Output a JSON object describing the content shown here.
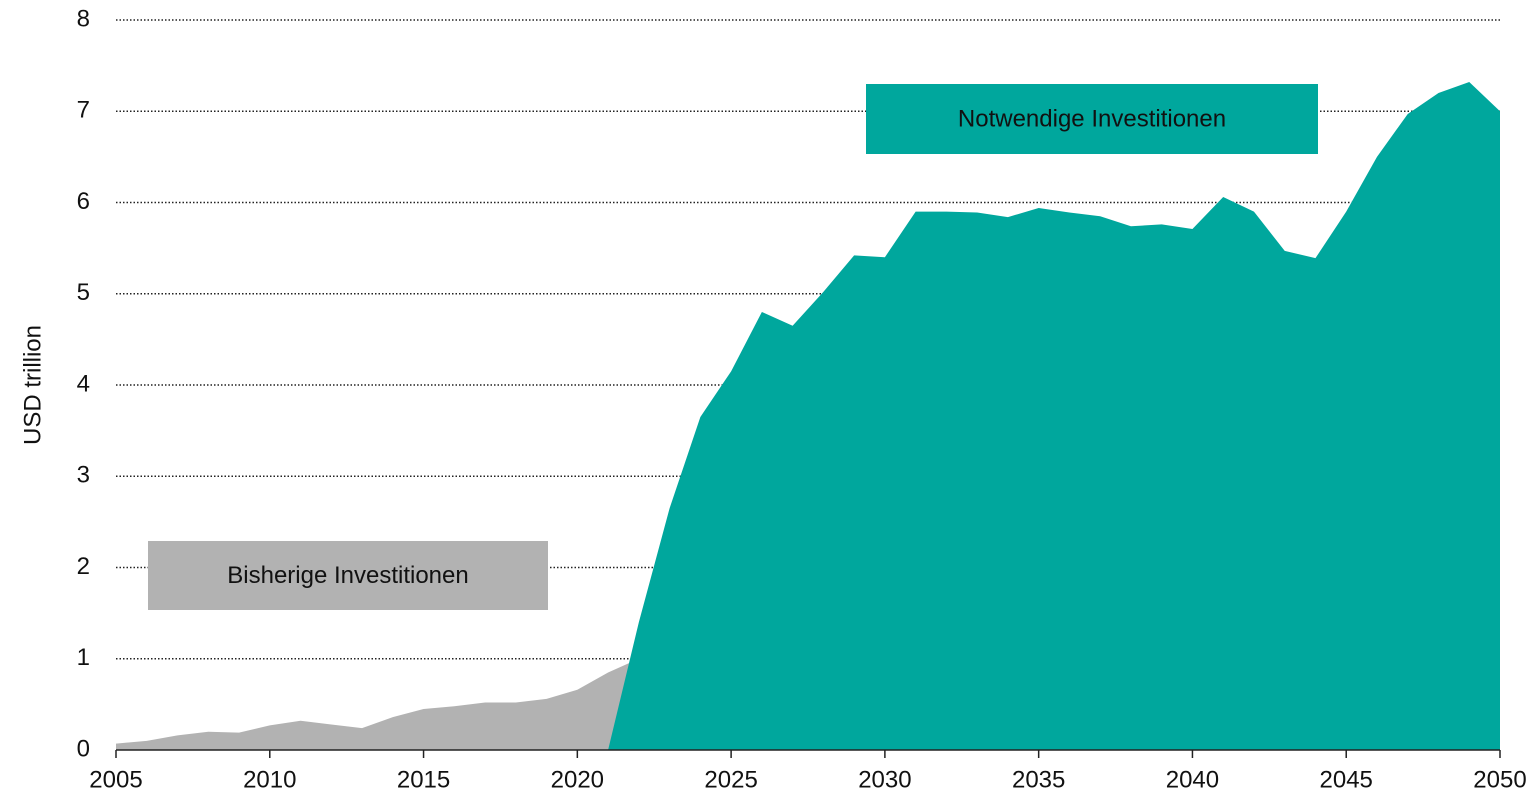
{
  "chart_data": {
    "type": "area",
    "y_label": "USD trillion",
    "x": [
      2005,
      2006,
      2007,
      2008,
      2009,
      2010,
      2011,
      2012,
      2013,
      2014,
      2015,
      2016,
      2017,
      2018,
      2019,
      2020,
      2021,
      2022,
      2023,
      2024,
      2025,
      2026,
      2027,
      2028,
      2029,
      2030,
      2031,
      2032,
      2033,
      2034,
      2035,
      2036,
      2037,
      2038,
      2039,
      2040,
      2041,
      2042,
      2043,
      2044,
      2045,
      2046,
      2047,
      2048,
      2049,
      2050
    ],
    "series": [
      {
        "name": "Bisherige Investitionen",
        "color": "#b2b2b2",
        "values": [
          0.07,
          0.1,
          0.16,
          0.2,
          0.19,
          0.27,
          0.32,
          0.28,
          0.24,
          0.36,
          0.45,
          0.48,
          0.52,
          0.52,
          0.56,
          0.66,
          0.85,
          1.0,
          null,
          null,
          null,
          null,
          null,
          null,
          null,
          null,
          null,
          null,
          null,
          null,
          null,
          null,
          null,
          null,
          null,
          null,
          null,
          null,
          null,
          null,
          null,
          null,
          null,
          null,
          null,
          null
        ]
      },
      {
        "name": "Notwendige Investitionen",
        "color": "#00a79d",
        "values": [
          null,
          null,
          null,
          null,
          null,
          null,
          null,
          null,
          null,
          null,
          null,
          null,
          null,
          null,
          null,
          null,
          0,
          1.4,
          2.65,
          3.65,
          4.15,
          4.8,
          4.65,
          5.02,
          5.42,
          5.4,
          5.9,
          5.9,
          5.89,
          5.84,
          5.94,
          5.89,
          5.85,
          5.74,
          5.76,
          5.71,
          6.06,
          5.9,
          5.47,
          5.39,
          5.9,
          6.5,
          6.97,
          7.2,
          7.32,
          7.0
        ]
      }
    ],
    "xlim": [
      2005,
      2050
    ],
    "xticks": [
      2005,
      2010,
      2015,
      2020,
      2025,
      2030,
      2035,
      2040,
      2045,
      2050
    ],
    "ylim": [
      0,
      8
    ],
    "yticks": [
      0,
      1,
      2,
      3,
      4,
      5,
      6,
      7,
      8
    ],
    "grid": true
  }
}
